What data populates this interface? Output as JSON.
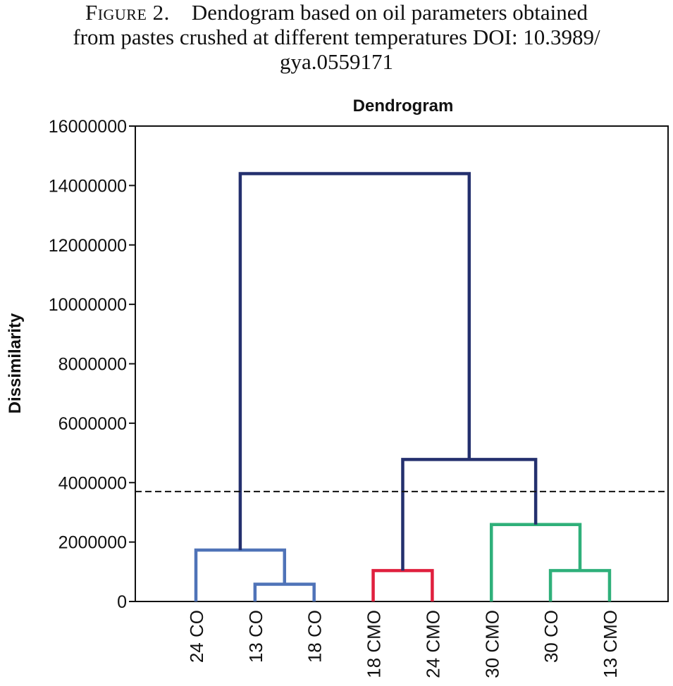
{
  "caption": {
    "label": "Figure 2.",
    "line1": "Dendogram based on oil parameters obtained",
    "line2": "from pastes crushed at different temperatures DOI: 10.3989/",
    "line3": "gya.0559171"
  },
  "chart_data": {
    "type": "dendrogram",
    "title": "Dendrogram",
    "xlabel": "",
    "ylabel": "Dissimilarity",
    "ylim": [
      0,
      16000000
    ],
    "yticks": [
      0,
      2000000,
      4000000,
      6000000,
      8000000,
      10000000,
      12000000,
      14000000,
      16000000
    ],
    "ytick_labels": [
      "0",
      "2000000",
      "4000000",
      "6000000",
      "8000000",
      "10000000",
      "12000000",
      "14000000",
      "16000000"
    ],
    "leaves": [
      "24 CO",
      "13 CO",
      "18 CO",
      "18 CMO",
      "24 CMO",
      "30 CMO",
      "30 CO",
      "13 CMO"
    ],
    "cut_line": 3700000,
    "merges": [
      {
        "left": "13 CO",
        "right": "18 CO",
        "height": 580000,
        "color": "#4f73b8"
      },
      {
        "left": "24 CO",
        "right": "13 CO + 18 CO",
        "height": 1730000,
        "color": "#4f73b8"
      },
      {
        "left": "18 CMO",
        "right": "24 CMO",
        "height": 1040000,
        "color": "#e0203e"
      },
      {
        "left": "30 CO",
        "right": "13 CMO",
        "height": 1040000,
        "color": "#2fb07a"
      },
      {
        "left": "30 CMO",
        "right": "30 CO + 13 CMO",
        "height": 2590000,
        "color": "#2fb07a"
      },
      {
        "left": "18 CMO + 24 CMO",
        "right": "30 CMO + 30 CO + 13 CMO",
        "height": 4780000,
        "color": "#24306e"
      },
      {
        "left": "24 CO + 13 CO + 18 CO",
        "right": "18 CMO + 24 CMO + 30 CMO + 30 CO + 13 CMO",
        "height": 14400000,
        "color": "#24306e"
      }
    ]
  }
}
